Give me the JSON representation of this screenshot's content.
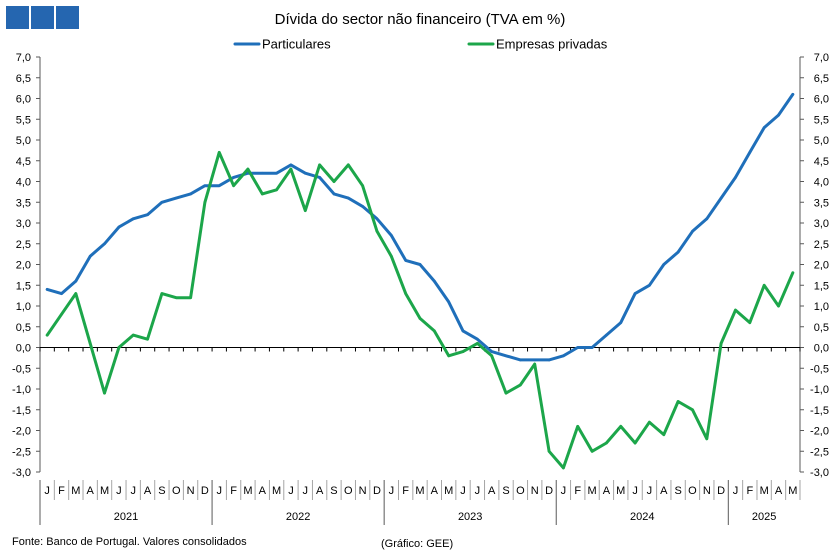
{
  "logo": {
    "icon": "logo-three-squares-icon",
    "color": "#2566B0"
  },
  "chart_data": {
    "type": "line",
    "title": "Dívida do sector não financeiro (TVA em %)",
    "categories": [
      "J",
      "F",
      "M",
      "A",
      "M",
      "J",
      "J",
      "A",
      "S",
      "O",
      "N",
      "D",
      "J",
      "F",
      "M",
      "A",
      "M",
      "J",
      "J",
      "A",
      "S",
      "O",
      "N",
      "D",
      "J",
      "F",
      "M",
      "A",
      "M",
      "J",
      "J",
      "A",
      "S",
      "O",
      "N",
      "D",
      "J",
      "F",
      "M",
      "A",
      "M",
      "J",
      "J",
      "A",
      "S",
      "O",
      "N",
      "D",
      "J",
      "F",
      "M",
      "A",
      "M"
    ],
    "years": [
      {
        "label": "2021",
        "months": 12
      },
      {
        "label": "2022",
        "months": 12
      },
      {
        "label": "2023",
        "months": 12
      },
      {
        "label": "2024",
        "months": 12
      },
      {
        "label": "2025",
        "months": 5
      }
    ],
    "ylim": [
      -3,
      7
    ],
    "ytick_step": 0.5,
    "ytick_labels": [
      "-3,0",
      "-2,5",
      "-2,0",
      "-1,5",
      "-1,0",
      "-0,5",
      "0,0",
      "0,5",
      "1,0",
      "1,5",
      "2,0",
      "2,5",
      "3,0",
      "3,5",
      "4,0",
      "4,5",
      "5,0",
      "5,5",
      "6,0",
      "6,5",
      "7,0"
    ],
    "y_axes": "left-and-right",
    "grid": false,
    "legend_position": "top-center",
    "series": [
      {
        "name": "Particulares",
        "color": "#1F6FBA",
        "values": [
          1.4,
          1.3,
          1.6,
          2.2,
          2.5,
          2.9,
          3.1,
          3.2,
          3.5,
          3.6,
          3.7,
          3.9,
          3.9,
          4.1,
          4.2,
          4.2,
          4.2,
          4.4,
          4.2,
          4.1,
          3.7,
          3.6,
          3.4,
          3.1,
          2.7,
          2.1,
          2.0,
          1.6,
          1.1,
          0.4,
          0.2,
          -0.1,
          -0.2,
          -0.3,
          -0.3,
          -0.3,
          -0.2,
          0.0,
          0.0,
          0.3,
          0.6,
          1.3,
          1.5,
          2.0,
          2.3,
          2.8,
          3.1,
          3.6,
          4.1,
          4.7,
          5.3,
          5.6,
          6.1
        ]
      },
      {
        "name": "Empresas privadas",
        "color": "#1CA64A",
        "values": [
          0.3,
          0.8,
          1.3,
          0.1,
          -1.1,
          0.0,
          0.3,
          0.2,
          1.3,
          1.2,
          1.2,
          3.5,
          4.7,
          3.9,
          4.3,
          3.7,
          3.8,
          4.3,
          3.3,
          4.4,
          4.0,
          4.4,
          3.9,
          2.8,
          2.2,
          1.3,
          0.7,
          0.4,
          -0.2,
          -0.1,
          0.1,
          -0.2,
          -1.1,
          -0.9,
          -0.4,
          -2.5,
          -2.9,
          -1.9,
          -2.5,
          -2.3,
          -1.9,
          -2.3,
          -1.8,
          -2.1,
          -1.3,
          -1.5,
          -2.2,
          0.1,
          0.9,
          0.6,
          1.5,
          1.0,
          1.8
        ]
      }
    ]
  },
  "footer": {
    "source": "Fonte: Banco de Portugal. Valores consolidados",
    "credit": "(Gráfico: GEE)"
  }
}
